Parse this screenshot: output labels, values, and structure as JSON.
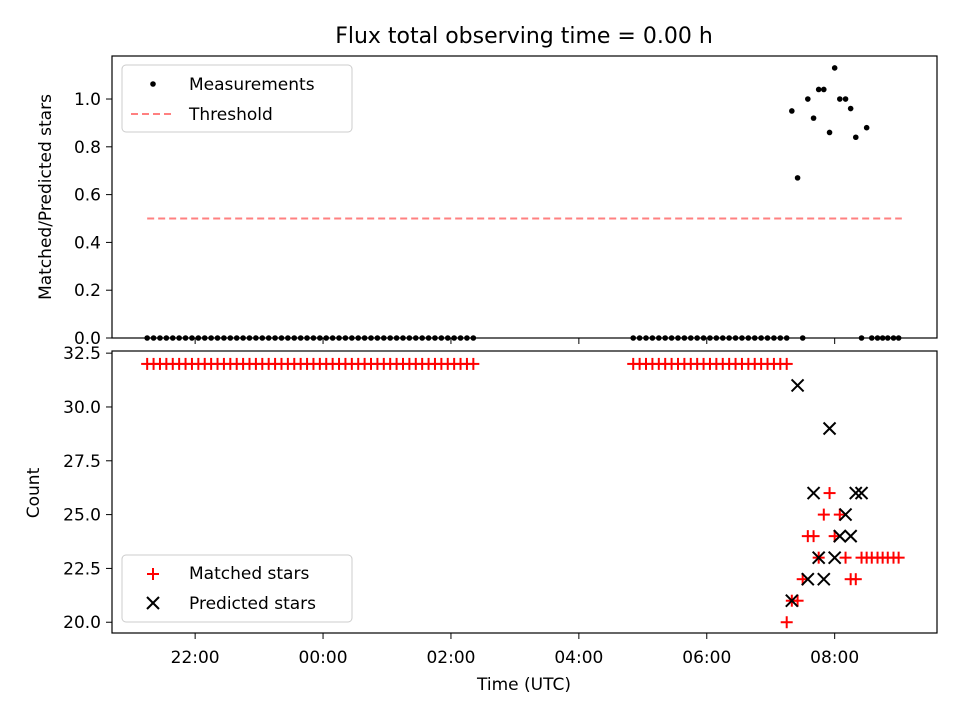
{
  "chart_data": {
    "title": "Flux total observing time = 0.00 h",
    "xlabel": "Time (UTC)",
    "x_ticks": [
      "22:00",
      "00:00",
      "02:00",
      "04:00",
      "06:00",
      "08:00"
    ],
    "x_tick_hours": [
      -2,
      0,
      2,
      4,
      6,
      8
    ],
    "x_range_hours": [
      -3.3,
      9.6
    ],
    "panels": [
      {
        "type": "scatter",
        "ylabel": "Matched/Predicted stars",
        "ylim": [
          0,
          1.18
        ],
        "y_ticks": [
          "0.0",
          "0.2",
          "0.4",
          "0.6",
          "0.8",
          "1.0"
        ],
        "y_tick_values": [
          0,
          0.2,
          0.4,
          0.6,
          0.8,
          1.0
        ],
        "legend": "top-left",
        "series": [
          {
            "name": "Measurements",
            "marker": "dot",
            "color": "#000000",
            "x_hours": [
              -2.75,
              -2.65,
              -2.55,
              -2.45,
              -2.35,
              -2.25,
              -2.15,
              -2.05,
              -1.95,
              -1.85,
              -1.75,
              -1.65,
              -1.55,
              -1.45,
              -1.35,
              -1.25,
              -1.15,
              -1.05,
              -0.95,
              -0.85,
              -0.75,
              -0.65,
              -0.55,
              -0.45,
              -0.35,
              -0.25,
              -0.15,
              -0.05,
              0.05,
              0.15,
              0.25,
              0.35,
              0.45,
              0.55,
              0.65,
              0.75,
              0.85,
              0.95,
              1.05,
              1.15,
              1.25,
              1.35,
              1.45,
              1.55,
              1.65,
              1.75,
              1.85,
              1.95,
              2.05,
              2.15,
              2.25,
              2.35,
              4.85,
              4.95,
              5.05,
              5.15,
              5.25,
              5.35,
              5.45,
              5.55,
              5.65,
              5.75,
              5.85,
              5.95,
              6.05,
              6.15,
              6.25,
              6.35,
              6.45,
              6.55,
              6.65,
              6.75,
              6.85,
              6.95,
              7.05,
              7.15,
              7.25,
              7.33,
              7.42,
              7.5,
              7.58,
              7.67,
              7.75,
              7.83,
              7.92,
              8.0,
              8.08,
              8.17,
              8.25,
              8.33,
              8.42,
              8.5,
              8.58,
              8.67,
              8.75,
              8.83,
              8.92,
              9.0
            ],
            "y": [
              0,
              0,
              0,
              0,
              0,
              0,
              0,
              0,
              0,
              0,
              0,
              0,
              0,
              0,
              0,
              0,
              0,
              0,
              0,
              0,
              0,
              0,
              0,
              0,
              0,
              0,
              0,
              0,
              0,
              0,
              0,
              0,
              0,
              0,
              0,
              0,
              0,
              0,
              0,
              0,
              0,
              0,
              0,
              0,
              0,
              0,
              0,
              0,
              0,
              0,
              0,
              0,
              0,
              0,
              0,
              0,
              0,
              0,
              0,
              0,
              0,
              0,
              0,
              0,
              0,
              0,
              0,
              0,
              0,
              0,
              0,
              0,
              0,
              0,
              0,
              0,
              0,
              0.95,
              0.67,
              0,
              1.0,
              0.92,
              1.04,
              1.04,
              0.86,
              1.13,
              1.0,
              1.0,
              0.96,
              0.84,
              0,
              0.88,
              0,
              0,
              0,
              0,
              0,
              0
            ]
          },
          {
            "name": "Threshold",
            "marker": "dashed-line",
            "color": "#ff8080",
            "x_hours": [
              -2.75,
              9.05
            ],
            "y": [
              0.5,
              0.5
            ]
          }
        ]
      },
      {
        "type": "scatter",
        "ylabel": "Count",
        "ylim": [
          19.5,
          32.6
        ],
        "y_ticks": [
          "20.0",
          "22.5",
          "25.0",
          "27.5",
          "30.0",
          "32.5"
        ],
        "y_tick_values": [
          20,
          22.5,
          25,
          27.5,
          30,
          32.5
        ],
        "legend": "bottom-left",
        "series": [
          {
            "name": "Matched stars",
            "marker": "plus",
            "color": "#ff0000",
            "x_hours": [
              -2.75,
              -2.65,
              -2.55,
              -2.45,
              -2.35,
              -2.25,
              -2.15,
              -2.05,
              -1.95,
              -1.85,
              -1.75,
              -1.65,
              -1.55,
              -1.45,
              -1.35,
              -1.25,
              -1.15,
              -1.05,
              -0.95,
              -0.85,
              -0.75,
              -0.65,
              -0.55,
              -0.45,
              -0.35,
              -0.25,
              -0.15,
              -0.05,
              0.05,
              0.15,
              0.25,
              0.35,
              0.45,
              0.55,
              0.65,
              0.75,
              0.85,
              0.95,
              1.05,
              1.15,
              1.25,
              1.35,
              1.45,
              1.55,
              1.65,
              1.75,
              1.85,
              1.95,
              2.05,
              2.15,
              2.25,
              2.35,
              4.85,
              4.95,
              5.05,
              5.15,
              5.25,
              5.35,
              5.45,
              5.55,
              5.65,
              5.75,
              5.85,
              5.95,
              6.05,
              6.15,
              6.25,
              6.35,
              6.45,
              6.55,
              6.65,
              6.75,
              6.85,
              6.95,
              7.05,
              7.15,
              7.25,
              7.25,
              7.33,
              7.42,
              7.5,
              7.58,
              7.67,
              7.75,
              7.83,
              7.92,
              8.0,
              8.08,
              8.17,
              8.25,
              8.33,
              8.42,
              8.5,
              8.58,
              8.67,
              8.75,
              8.83,
              8.92,
              9.0
            ],
            "y": [
              32,
              32,
              32,
              32,
              32,
              32,
              32,
              32,
              32,
              32,
              32,
              32,
              32,
              32,
              32,
              32,
              32,
              32,
              32,
              32,
              32,
              32,
              32,
              32,
              32,
              32,
              32,
              32,
              32,
              32,
              32,
              32,
              32,
              32,
              32,
              32,
              32,
              32,
              32,
              32,
              32,
              32,
              32,
              32,
              32,
              32,
              32,
              32,
              32,
              32,
              32,
              32,
              32,
              32,
              32,
              32,
              32,
              32,
              32,
              32,
              32,
              32,
              32,
              32,
              32,
              32,
              32,
              32,
              32,
              32,
              32,
              32,
              32,
              32,
              32,
              32,
              32,
              20,
              21,
              21,
              22,
              24,
              24,
              23,
              25,
              26,
              24,
              25,
              23,
              22,
              22,
              23,
              23,
              23,
              23,
              23,
              23,
              23,
              23
            ]
          },
          {
            "name": "Predicted stars",
            "marker": "x",
            "color": "#000000",
            "x_hours": [
              7.33,
              7.42,
              7.58,
              7.67,
              7.75,
              7.83,
              7.92,
              8.0,
              8.08,
              8.17,
              8.25,
              8.33,
              8.42
            ],
            "y": [
              21,
              31,
              22,
              26,
              23,
              22,
              29,
              23,
              24,
              25,
              24,
              26,
              26
            ]
          }
        ]
      }
    ]
  }
}
